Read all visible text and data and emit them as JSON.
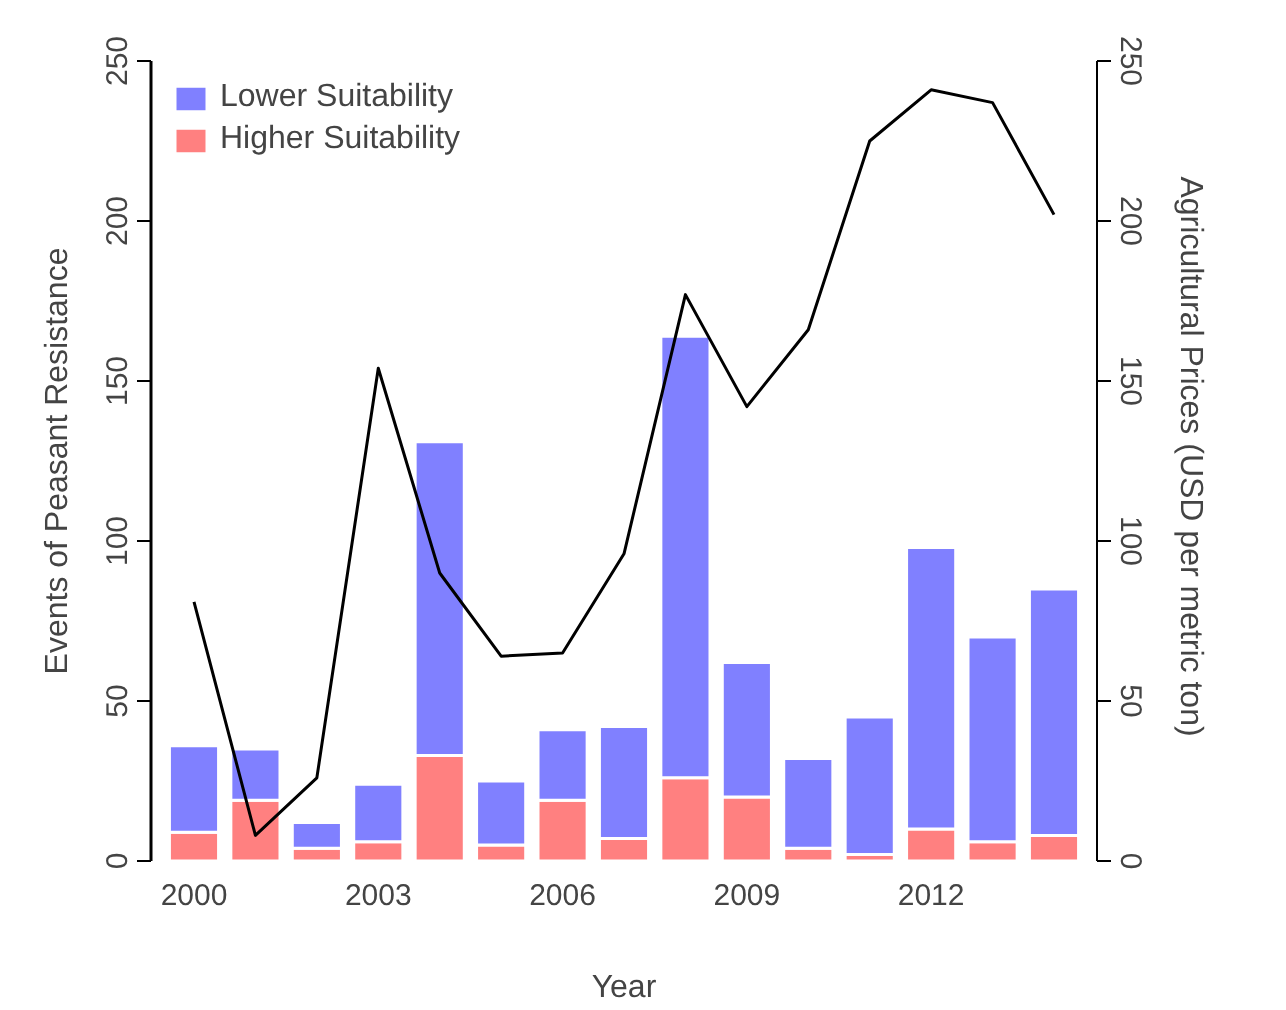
{
  "chart_data": {
    "type": "bar",
    "stacked": true,
    "xlabel": "Year",
    "ylabel": "Events of Peasant Resistance",
    "y2label": "Agricultural Prices  (USD per metric ton)",
    "x": [
      2000,
      2001,
      2002,
      2003,
      2004,
      2005,
      2006,
      2007,
      2008,
      2009,
      2010,
      2011,
      2012,
      2013,
      2014
    ],
    "series": [
      {
        "name": "Higher Suitability",
        "color": "#ff8080",
        "values": [
          9,
          19,
          4,
          6,
          33,
          5,
          19,
          7,
          26,
          20,
          4,
          2,
          10,
          6,
          8
        ]
      },
      {
        "name": "Lower Suitability",
        "color": "#8080ff",
        "values": [
          27,
          16,
          8,
          18,
          98,
          20,
          22,
          35,
          138,
          42,
          28,
          43,
          88,
          64,
          77
        ]
      },
      {
        "type": "line",
        "axis": "y2",
        "color": "#000000",
        "values": [
          81,
          8,
          26,
          154,
          90,
          64,
          65,
          96,
          177,
          142,
          166,
          225,
          241,
          237,
          202
        ]
      }
    ],
    "xlim": [
      1999.3,
      2014.7
    ],
    "xticks": [
      2000,
      2003,
      2006,
      2009,
      2012
    ],
    "ylim": [
      0,
      250
    ],
    "yticks": [
      0,
      50,
      100,
      150,
      200,
      250
    ],
    "y2lim": [
      0,
      250
    ],
    "y2ticks": [
      0,
      50,
      100,
      150,
      200,
      250
    ],
    "grid": false,
    "legend": "top left"
  }
}
